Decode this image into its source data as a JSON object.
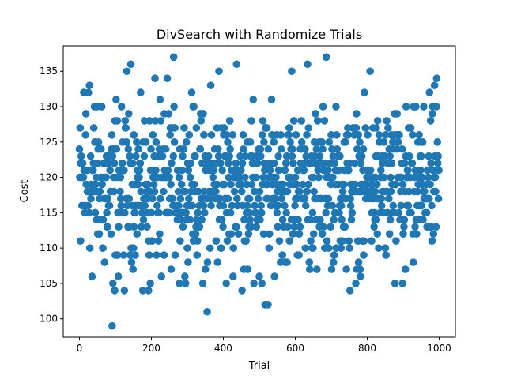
{
  "chart_data": {
    "type": "scatter",
    "title": "DivSearch with Randomize Trials",
    "xlabel": "Trial",
    "ylabel": "Cost",
    "xlim": [
      -45,
      1045
    ],
    "ylim": [
      97.4,
      138.6
    ],
    "x_ticks": [
      0,
      200,
      400,
      600,
      800,
      1000
    ],
    "y_ticks": [
      100,
      105,
      110,
      115,
      120,
      125,
      130,
      135
    ],
    "grid": false,
    "legend": "none",
    "marker_color": "#1f77b4",
    "n_points": 1000,
    "sample_points": [
      [
        0,
        124
      ],
      [
        3,
        111
      ],
      [
        8,
        122
      ],
      [
        12,
        132
      ],
      [
        15,
        115
      ],
      [
        18,
        129
      ],
      [
        25,
        132
      ],
      [
        28,
        133
      ],
      [
        35,
        106
      ],
      [
        42,
        130
      ],
      [
        55,
        112
      ],
      [
        62,
        130
      ],
      [
        70,
        108
      ],
      [
        78,
        113
      ],
      [
        88,
        112
      ],
      [
        91,
        99
      ],
      [
        93,
        105
      ],
      [
        98,
        104
      ],
      [
        102,
        131
      ],
      [
        108,
        106
      ],
      [
        125,
        104
      ],
      [
        132,
        135
      ],
      [
        143,
        136
      ],
      [
        150,
        110
      ],
      [
        176,
        104
      ],
      [
        192,
        104
      ],
      [
        197,
        105
      ],
      [
        210,
        134
      ],
      [
        220,
        111
      ],
      [
        228,
        106
      ],
      [
        235,
        109
      ],
      [
        244,
        134
      ],
      [
        262,
        137
      ],
      [
        278,
        105
      ],
      [
        300,
        110
      ],
      [
        312,
        132
      ],
      [
        328,
        111
      ],
      [
        343,
        105
      ],
      [
        350,
        107
      ],
      [
        355,
        101
      ],
      [
        365,
        133
      ],
      [
        384,
        108
      ],
      [
        388,
        135
      ],
      [
        408,
        105
      ],
      [
        437,
        136
      ],
      [
        452,
        104
      ],
      [
        468,
        107
      ],
      [
        485,
        105
      ],
      [
        500,
        106
      ],
      [
        507,
        105
      ],
      [
        516,
        102
      ],
      [
        524,
        102
      ],
      [
        572,
        108
      ],
      [
        590,
        135
      ],
      [
        610,
        109
      ],
      [
        634,
        136
      ],
      [
        640,
        107
      ],
      [
        660,
        107
      ],
      [
        686,
        137
      ],
      [
        706,
        108
      ],
      [
        742,
        107
      ],
      [
        752,
        104
      ],
      [
        768,
        105
      ],
      [
        780,
        107
      ],
      [
        790,
        109
      ],
      [
        808,
        135
      ],
      [
        832,
        110
      ],
      [
        852,
        109
      ],
      [
        877,
        105
      ],
      [
        898,
        105
      ],
      [
        906,
        107
      ],
      [
        928,
        108
      ],
      [
        955,
        114
      ],
      [
        980,
        111
      ],
      [
        987,
        133
      ],
      [
        993,
        134
      ],
      [
        999,
        121
      ]
    ]
  }
}
